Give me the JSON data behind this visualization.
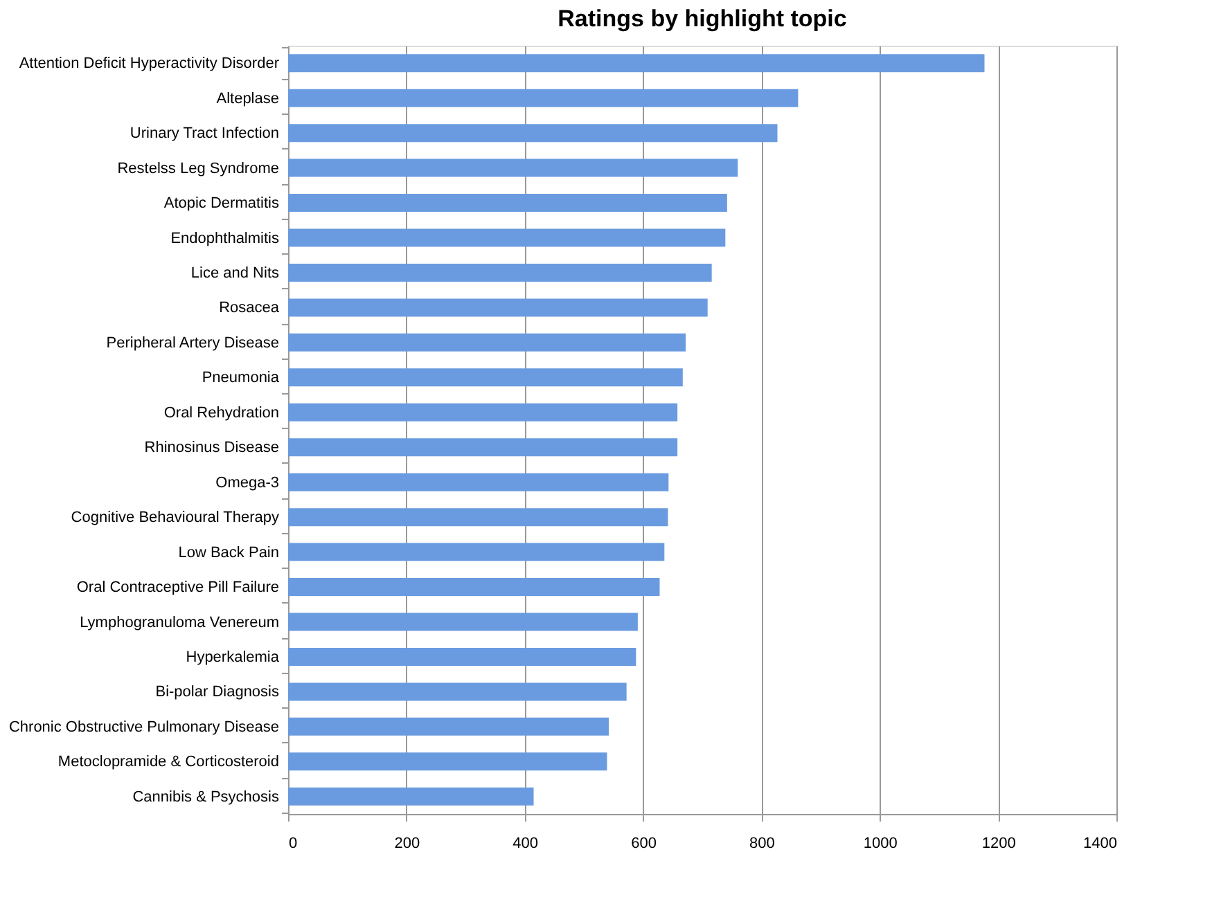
{
  "chart_data": {
    "type": "bar",
    "orientation": "horizontal",
    "title": "Ratings by highlight topic",
    "categories": [
      "Attention Deficit Hyperactivity Disorder",
      "Alteplase",
      "Urinary Tract Infection",
      "Restelss Leg Syndrome",
      "Atopic Dermatitis",
      "Endophthalmitis",
      "Lice and Nits",
      "Rosacea",
      "Peripheral Artery Disease",
      "Pneumonia",
      "Oral Rehydration",
      "Rhinosinus Disease",
      "Omega-3",
      "Cognitive Behavioural Therapy",
      "Low Back Pain",
      "Oral Contraceptive Pill Failure",
      "Lymphogranuloma Venereum",
      "Hyperkalemia",
      "Bi-polar Diagnosis",
      "Chronic Obstructive Pulmonary Disease",
      "Metoclopramide & Corticosteroid",
      "Cannibis & Psychosis"
    ],
    "values": [
      1177,
      862,
      827,
      760,
      742,
      739,
      716,
      709,
      672,
      667,
      658,
      658,
      643,
      642,
      636,
      628,
      591,
      588,
      572,
      542,
      539,
      415
    ],
    "color": "#6a9be0",
    "xlim": [
      0,
      1400
    ],
    "xticks": [
      0,
      200,
      400,
      600,
      800,
      1000,
      1200,
      1400
    ],
    "grid": "x"
  }
}
